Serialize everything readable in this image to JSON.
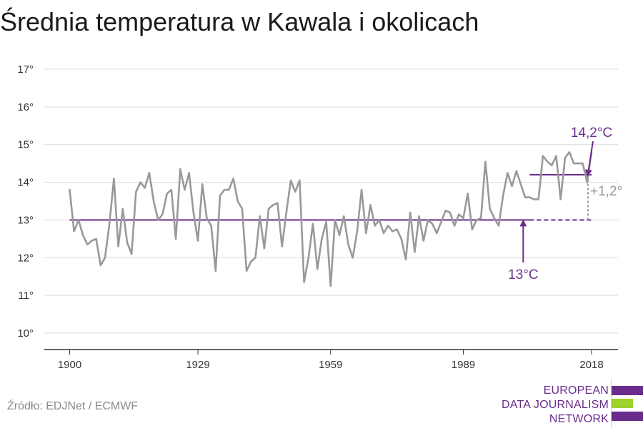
{
  "title": "Średnia temperatura w Kawala i okolicach",
  "source": "Źródło: EDJNet / ECMWF",
  "logo": {
    "lines": [
      "EUROPEAN",
      "DATA JOURNALISM",
      "NETWORK"
    ],
    "colors": [
      "#6b2d8c",
      "#9ed22c",
      "#6b2d8c"
    ]
  },
  "chart_data": {
    "type": "line",
    "ylim": [
      10,
      17
    ],
    "yticks": [
      10,
      11,
      12,
      13,
      14,
      15,
      16,
      17
    ],
    "ytick_suffix": "°",
    "xlim": [
      1900,
      2018
    ],
    "xticks": [
      1900,
      1929,
      1959,
      1989,
      2018
    ],
    "series": [
      {
        "color": "#999999",
        "x": [
          1900,
          1901,
          1902,
          1903,
          1904,
          1905,
          1906,
          1907,
          1908,
          1909,
          1910,
          1911,
          1912,
          1913,
          1914,
          1915,
          1916,
          1917,
          1918,
          1919,
          1920,
          1921,
          1922,
          1923,
          1924,
          1925,
          1926,
          1927,
          1928,
          1929,
          1930,
          1931,
          1932,
          1933,
          1934,
          1935,
          1936,
          1937,
          1938,
          1939,
          1940,
          1941,
          1942,
          1943,
          1944,
          1945,
          1946,
          1947,
          1948,
          1949,
          1950,
          1951,
          1952,
          1953,
          1954,
          1955,
          1956,
          1957,
          1958,
          1959,
          1960,
          1961,
          1962,
          1963,
          1964,
          1965,
          1966,
          1967,
          1968,
          1969,
          1970,
          1971,
          1972,
          1973,
          1974,
          1975,
          1976,
          1977,
          1978,
          1979,
          1980,
          1981,
          1982,
          1983,
          1984,
          1985,
          1986,
          1987,
          1988,
          1989,
          1990,
          1991,
          1992,
          1993,
          1994,
          1995,
          1996,
          1997,
          1998,
          1999,
          2000,
          2001,
          2002,
          2003,
          2004,
          2005,
          2006,
          2007,
          2008,
          2009,
          2010,
          2011,
          2012,
          2013,
          2014,
          2015,
          2016,
          2017,
          2018
        ],
        "values": [
          13.8,
          12.7,
          13.0,
          12.6,
          12.35,
          12.45,
          12.5,
          11.8,
          12.0,
          12.9,
          14.1,
          12.3,
          13.3,
          12.4,
          12.1,
          13.75,
          14.0,
          13.85,
          14.25,
          13.5,
          13.0,
          13.15,
          13.7,
          13.8,
          12.5,
          14.35,
          13.8,
          14.25,
          13.2,
          12.45,
          13.95,
          13.05,
          12.85,
          11.65,
          13.65,
          13.8,
          13.8,
          14.1,
          13.5,
          13.3,
          11.65,
          11.9,
          12.0,
          13.1,
          12.25,
          13.3,
          13.4,
          13.45,
          12.3,
          13.2,
          14.05,
          13.75,
          14.05,
          11.35,
          12.0,
          12.9,
          11.7,
          12.5,
          12.95,
          11.25,
          13.0,
          12.6,
          13.1,
          12.35,
          12.0,
          12.7,
          13.8,
          12.65,
          13.4,
          12.85,
          13.0,
          12.65,
          12.85,
          12.7,
          12.75,
          12.5,
          11.95,
          13.2,
          12.15,
          13.1,
          12.45,
          13.0,
          12.9,
          12.65,
          12.95,
          13.25,
          13.2,
          12.85,
          13.15,
          13.05,
          13.7,
          12.75,
          13.0,
          13.05,
          14.55,
          13.3,
          13.05,
          12.85,
          13.65,
          14.25,
          13.9,
          14.3,
          13.95,
          13.6,
          13.6,
          13.55,
          13.55,
          14.7,
          14.55,
          14.45,
          14.7,
          13.55,
          14.65,
          14.8,
          14.5,
          14.5,
          14.5,
          14.0,
          14.8
        ]
      }
    ],
    "reference_lines": [
      {
        "y": 13.0,
        "x_start": 1900,
        "x_end": 2004,
        "style": "solid",
        "color": "#6b2d8c"
      },
      {
        "y": 13.0,
        "x_start": 2004,
        "x_end": 2018,
        "style": "dashed",
        "color": "#6b2d8c"
      },
      {
        "y": 14.2,
        "x_start": 2004,
        "x_end": 2018,
        "style": "solid",
        "color": "#6b2d8c"
      }
    ],
    "annotations": [
      {
        "text": "14,2°C",
        "color": "#6b2d8c"
      },
      {
        "text": "13°C",
        "color": "#6b2d8c"
      },
      {
        "text": "+1,2°",
        "color": "#999999"
      }
    ]
  }
}
